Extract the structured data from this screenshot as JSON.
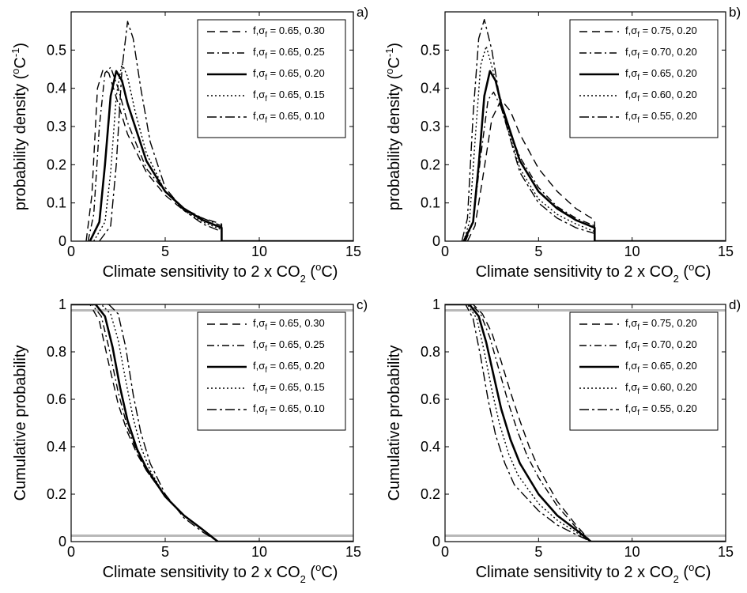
{
  "chart_data": [
    {
      "type": "line",
      "panel_label": "a)",
      "xlabel": "Climate sensitivity to 2 x CO2 (oC)",
      "ylabel": "probability density (oC-1)",
      "xlim": [
        0,
        15
      ],
      "ylim": [
        0,
        0.6
      ],
      "xticks": [
        0,
        5,
        10,
        15
      ],
      "yticks": [
        0,
        0.1,
        0.2,
        0.3,
        0.4,
        0.5
      ],
      "legend_position": "top-right",
      "series": [
        {
          "name": "f,σf = 0.65, 0.30",
          "style": "dashed",
          "x": [
            0.8,
            1.1,
            1.4,
            1.7,
            2.0,
            2.5,
            3.0,
            4.0,
            5.0,
            6.0,
            7.0,
            8.0,
            8.0,
            15.0
          ],
          "y": [
            0.0,
            0.12,
            0.4,
            0.45,
            0.44,
            0.36,
            0.28,
            0.18,
            0.12,
            0.08,
            0.06,
            0.045,
            0.0,
            0.0
          ]
        },
        {
          "name": "f,σf = 0.65, 0.25",
          "style": "dashdot",
          "x": [
            0.9,
            1.2,
            1.5,
            1.8,
            2.1,
            2.5,
            3.0,
            4.0,
            5.0,
            6.0,
            7.0,
            8.0,
            8.0,
            15.0
          ],
          "y": [
            0.0,
            0.07,
            0.3,
            0.44,
            0.455,
            0.4,
            0.31,
            0.19,
            0.13,
            0.085,
            0.06,
            0.04,
            0.0,
            0.0
          ]
        },
        {
          "name": "f,σf = 0.65, 0.20",
          "style": "solid",
          "x": [
            1.0,
            1.5,
            1.8,
            2.1,
            2.4,
            2.7,
            3.0,
            4.0,
            5.0,
            6.0,
            7.0,
            8.0,
            8.0,
            15.0
          ],
          "y": [
            0.0,
            0.05,
            0.2,
            0.38,
            0.445,
            0.42,
            0.36,
            0.21,
            0.13,
            0.085,
            0.055,
            0.035,
            0.0,
            0.0
          ]
        },
        {
          "name": "f,σf = 0.65, 0.15",
          "style": "dotted",
          "x": [
            1.2,
            1.8,
            2.1,
            2.4,
            2.7,
            3.0,
            3.4,
            4.0,
            5.0,
            6.0,
            7.0,
            8.0,
            8.0,
            15.0
          ],
          "y": [
            0.0,
            0.05,
            0.18,
            0.38,
            0.465,
            0.43,
            0.34,
            0.23,
            0.13,
            0.08,
            0.05,
            0.03,
            0.0,
            0.0
          ]
        },
        {
          "name": "f,σf = 0.65, 0.10",
          "style": "dashdot2",
          "x": [
            1.5,
            2.1,
            2.4,
            2.7,
            3.0,
            3.3,
            3.7,
            4.2,
            5.0,
            6.0,
            7.0,
            8.0,
            8.0,
            15.0
          ],
          "y": [
            0.0,
            0.04,
            0.2,
            0.45,
            0.575,
            0.53,
            0.4,
            0.26,
            0.14,
            0.08,
            0.045,
            0.025,
            0.0,
            0.0
          ]
        }
      ]
    },
    {
      "type": "line",
      "panel_label": "b)",
      "xlabel": "Climate sensitivity to 2 x CO2 (oC)",
      "ylabel": "probability density (oC-1)",
      "xlim": [
        0,
        15
      ],
      "ylim": [
        0,
        0.6
      ],
      "xticks": [
        0,
        5,
        10,
        15
      ],
      "yticks": [
        0,
        0.1,
        0.2,
        0.3,
        0.4,
        0.5
      ],
      "legend_position": "top-right",
      "series": [
        {
          "name": "f,σf = 0.75, 0.20",
          "style": "dashed",
          "x": [
            1.2,
            1.6,
            2.0,
            2.5,
            3.0,
            3.5,
            4.0,
            5.0,
            6.0,
            7.0,
            8.0,
            8.0,
            15.0
          ],
          "y": [
            0.0,
            0.04,
            0.16,
            0.32,
            0.37,
            0.34,
            0.28,
            0.19,
            0.13,
            0.085,
            0.055,
            0.0,
            0.0
          ]
        },
        {
          "name": "f,σf = 0.70, 0.20",
          "style": "dashdot",
          "x": [
            1.1,
            1.5,
            1.9,
            2.3,
            2.6,
            3.0,
            3.5,
            4.0,
            5.0,
            6.0,
            7.0,
            8.0,
            8.0,
            15.0
          ],
          "y": [
            0.0,
            0.05,
            0.22,
            0.37,
            0.39,
            0.35,
            0.28,
            0.22,
            0.14,
            0.09,
            0.06,
            0.04,
            0.0,
            0.0
          ]
        },
        {
          "name": "f,σf = 0.65, 0.20",
          "style": "solid",
          "x": [
            1.0,
            1.5,
            1.8,
            2.1,
            2.4,
            2.7,
            3.0,
            4.0,
            5.0,
            6.0,
            7.0,
            8.0,
            8.0,
            15.0
          ],
          "y": [
            0.0,
            0.05,
            0.2,
            0.38,
            0.445,
            0.42,
            0.36,
            0.21,
            0.13,
            0.085,
            0.055,
            0.035,
            0.0,
            0.0
          ]
        },
        {
          "name": "f,σf = 0.60, 0.20",
          "style": "dotted",
          "x": [
            1.0,
            1.3,
            1.6,
            1.9,
            2.2,
            2.6,
            3.0,
            4.0,
            5.0,
            6.0,
            7.0,
            8.0,
            8.0,
            15.0
          ],
          "y": [
            0.0,
            0.05,
            0.26,
            0.46,
            0.51,
            0.44,
            0.35,
            0.19,
            0.11,
            0.07,
            0.045,
            0.025,
            0.0,
            0.0
          ]
        },
        {
          "name": "f,σf = 0.55, 0.20",
          "style": "dashdot2",
          "x": [
            0.9,
            1.2,
            1.5,
            1.8,
            2.1,
            2.5,
            3.0,
            4.0,
            5.0,
            6.0,
            7.0,
            8.0,
            8.0,
            15.0
          ],
          "y": [
            0.0,
            0.06,
            0.33,
            0.53,
            0.58,
            0.5,
            0.35,
            0.18,
            0.1,
            0.06,
            0.035,
            0.02,
            0.0,
            0.0
          ]
        }
      ]
    },
    {
      "type": "line",
      "panel_label": "c)",
      "xlabel": "Climate sensitivity to 2 x CO2 (oC)",
      "ylabel": "Cumulative probability",
      "xlim": [
        0,
        15
      ],
      "ylim": [
        0,
        1
      ],
      "xticks": [
        0,
        5,
        10,
        15
      ],
      "yticks": [
        0,
        0.2,
        0.4,
        0.6,
        0.8,
        1
      ],
      "legend_position": "top-right",
      "reference_lines": [
        0.975,
        0.025
      ],
      "series": [
        {
          "name": "f,σf = 0.65, 0.30",
          "style": "dashed",
          "x": [
            0,
            1.0,
            1.5,
            2.0,
            2.5,
            3.0,
            3.5,
            4.0,
            5.0,
            6.0,
            7.0,
            7.8,
            8.0,
            15.0
          ],
          "y": [
            1.0,
            1.0,
            0.93,
            0.75,
            0.58,
            0.46,
            0.37,
            0.3,
            0.19,
            0.11,
            0.05,
            0.0,
            0.0,
            0.0
          ]
        },
        {
          "name": "f,σf = 0.65, 0.25",
          "style": "dashdot",
          "x": [
            0,
            1.1,
            1.6,
            2.0,
            2.5,
            3.0,
            3.5,
            4.0,
            5.0,
            6.0,
            7.0,
            7.8,
            8.0,
            15.0
          ],
          "y": [
            1.0,
            1.0,
            0.95,
            0.82,
            0.63,
            0.48,
            0.38,
            0.3,
            0.19,
            0.11,
            0.05,
            0.0,
            0.0,
            0.0
          ]
        },
        {
          "name": "f,σf = 0.65, 0.20",
          "style": "solid",
          "x": [
            0,
            1.3,
            1.8,
            2.2,
            2.6,
            3.0,
            3.5,
            4.0,
            5.0,
            6.0,
            7.0,
            7.8,
            8.0,
            15.0
          ],
          "y": [
            1.0,
            1.0,
            0.95,
            0.82,
            0.65,
            0.51,
            0.39,
            0.31,
            0.19,
            0.11,
            0.05,
            0.0,
            0.0,
            0.0
          ]
        },
        {
          "name": "f,σf = 0.65, 0.15",
          "style": "dotted",
          "x": [
            0,
            1.6,
            2.1,
            2.5,
            2.9,
            3.3,
            3.7,
            4.2,
            5.0,
            6.0,
            7.0,
            7.8,
            8.0,
            15.0
          ],
          "y": [
            1.0,
            1.0,
            0.96,
            0.85,
            0.68,
            0.52,
            0.4,
            0.3,
            0.19,
            0.11,
            0.05,
            0.0,
            0.0,
            0.0
          ]
        },
        {
          "name": "f,σf = 0.65, 0.10",
          "style": "dashdot2",
          "x": [
            0,
            2.0,
            2.5,
            2.9,
            3.3,
            3.7,
            4.2,
            5.0,
            6.0,
            7.0,
            7.8,
            8.0,
            15.0
          ],
          "y": [
            1.0,
            1.0,
            0.96,
            0.82,
            0.62,
            0.46,
            0.33,
            0.2,
            0.1,
            0.04,
            0.0,
            0.0,
            0.0
          ]
        }
      ]
    },
    {
      "type": "line",
      "panel_label": "d)",
      "xlabel": "Climate sensitivity to 2 x CO2 (oC)",
      "ylabel": "Cumulative probability",
      "xlim": [
        0,
        15
      ],
      "ylim": [
        0,
        1
      ],
      "xticks": [
        0,
        5,
        10,
        15
      ],
      "yticks": [
        0,
        0.2,
        0.4,
        0.6,
        0.8,
        1
      ],
      "legend_position": "top-right",
      "reference_lines": [
        0.975,
        0.025
      ],
      "series": [
        {
          "name": "f,σf = 0.75, 0.20",
          "style": "dashed",
          "x": [
            0,
            1.5,
            2.0,
            2.5,
            3.0,
            3.5,
            4.0,
            4.5,
            5.0,
            6.0,
            7.0,
            7.8,
            8.0,
            15.0
          ],
          "y": [
            1.0,
            1.0,
            0.96,
            0.88,
            0.76,
            0.63,
            0.51,
            0.4,
            0.31,
            0.17,
            0.07,
            0.0,
            0.0,
            0.0
          ]
        },
        {
          "name": "f,σf = 0.70, 0.20",
          "style": "dashdot",
          "x": [
            0,
            1.4,
            1.9,
            2.4,
            2.9,
            3.4,
            3.9,
            4.4,
            5.0,
            6.0,
            7.0,
            7.8,
            8.0,
            15.0
          ],
          "y": [
            1.0,
            1.0,
            0.96,
            0.86,
            0.72,
            0.58,
            0.46,
            0.36,
            0.27,
            0.15,
            0.06,
            0.0,
            0.0,
            0.0
          ]
        },
        {
          "name": "f,σf = 0.65, 0.20",
          "style": "solid",
          "x": [
            0,
            1.3,
            1.8,
            2.2,
            2.6,
            3.0,
            3.5,
            4.0,
            5.0,
            6.0,
            7.0,
            7.8,
            8.0,
            15.0
          ],
          "y": [
            1.0,
            1.0,
            0.95,
            0.84,
            0.7,
            0.56,
            0.43,
            0.33,
            0.2,
            0.11,
            0.05,
            0.0,
            0.0,
            0.0
          ]
        },
        {
          "name": "f,σf = 0.60, 0.20",
          "style": "dotted",
          "x": [
            0,
            1.2,
            1.7,
            2.1,
            2.5,
            2.9,
            3.4,
            3.9,
            5.0,
            6.0,
            7.0,
            7.8,
            8.0,
            15.0
          ],
          "y": [
            1.0,
            1.0,
            0.94,
            0.8,
            0.64,
            0.5,
            0.37,
            0.28,
            0.16,
            0.09,
            0.04,
            0.0,
            0.0,
            0.0
          ]
        },
        {
          "name": "f,σf = 0.55, 0.20",
          "style": "dashdot2",
          "x": [
            0,
            1.1,
            1.5,
            1.9,
            2.3,
            2.7,
            3.2,
            3.7,
            5.0,
            6.0,
            7.0,
            7.8,
            8.0,
            15.0
          ],
          "y": [
            1.0,
            1.0,
            0.94,
            0.78,
            0.6,
            0.45,
            0.33,
            0.24,
            0.13,
            0.07,
            0.03,
            0.0,
            0.0,
            0.0
          ]
        }
      ]
    }
  ]
}
